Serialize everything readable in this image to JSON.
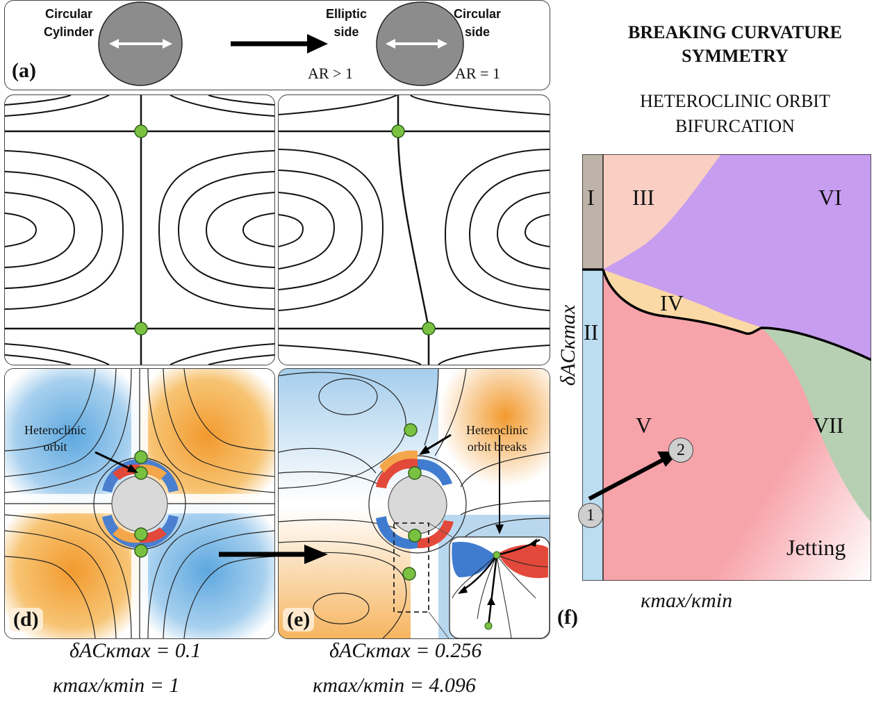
{
  "panel_a": {
    "label": "(a)",
    "left_title_1": "Circular",
    "left_title_2": "Cylinder",
    "elliptic_1": "Elliptic",
    "elliptic_2": "side",
    "circular_1": "Circular",
    "circular_2": "side",
    "ar_left": "AR > 1",
    "ar_right": "AR = 1"
  },
  "panel_d": {
    "label": "(d)",
    "annotation_1": "Heteroclinic",
    "annotation_2": "orbit",
    "param_1": "δACκmax = 0.1",
    "param_2": "κmax/κmin = 1"
  },
  "panel_e": {
    "label": "(e)",
    "annotation_1": "Heteroclinic",
    "annotation_2": "orbit breaks",
    "param_1": "δACκmax = 0.256",
    "param_2": "κmax/κmin = 4.096"
  },
  "panel_f": {
    "label": "(f)",
    "title_1": "BREAKING CURVATURE",
    "title_2": "SYMMETRY",
    "subtitle_1": "HETEROCLINIC ORBIT",
    "subtitle_2": "BIFURCATION",
    "xlabel": "κmax/κmin",
    "ylabel": "δACκmax",
    "regions": [
      "I",
      "II",
      "III",
      "IV",
      "V",
      "VI",
      "VII",
      "Jetting"
    ],
    "point_1": "1",
    "point_2": "2",
    "colors": {
      "I": "#bdb3a8",
      "II": "#bcdcf0",
      "III": "#f9cfc3",
      "IV": "#fbd9a6",
      "V": "#f7a3aa",
      "VI": "#c79df0",
      "VII": "#b7cfb2"
    }
  }
}
